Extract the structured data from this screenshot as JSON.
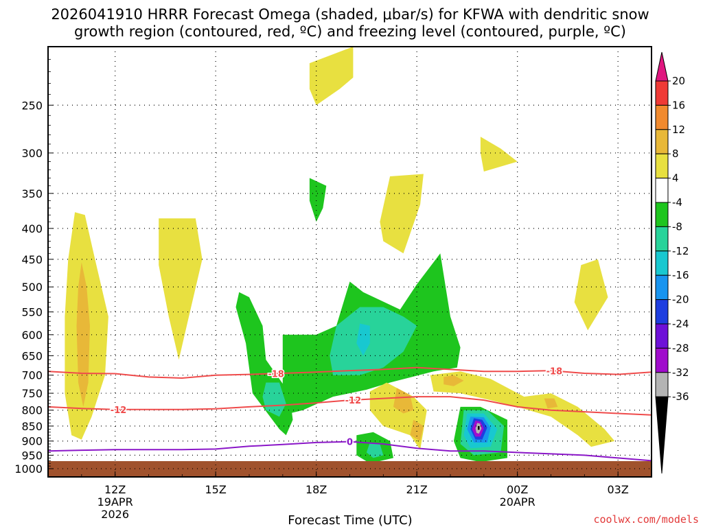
{
  "chart_data": {
    "type": "heatmap",
    "title_line1": "2026041910 HRRR Forecast Omega (shaded, μbar/s) for KFWA with dendritic snow",
    "title_line2": "growth region (contoured, red, ºC) and freezing level (contoured, purple, ºC)",
    "xlabel": "Forecast Time (UTC)",
    "credit": "coolwx.com/models",
    "y_ticks": [
      250,
      300,
      350,
      400,
      450,
      500,
      550,
      600,
      650,
      700,
      750,
      800,
      850,
      900,
      950,
      1000
    ],
    "x_ticks": [
      {
        "hour": 12,
        "label": "12Z",
        "sub1": "19APR",
        "sub2": "2026"
      },
      {
        "hour": 15,
        "label": "15Z",
        "sub1": "",
        "sub2": ""
      },
      {
        "hour": 18,
        "label": "18Z",
        "sub1": "",
        "sub2": ""
      },
      {
        "hour": 21,
        "label": "21Z",
        "sub1": "",
        "sub2": ""
      },
      {
        "hour": 24,
        "label": "00Z",
        "sub1": "20APR",
        "sub2": ""
      },
      {
        "hour": 27,
        "label": "03Z",
        "sub1": "",
        "sub2": ""
      }
    ],
    "x_range_hours": [
      10,
      28
    ],
    "y_range_hPa": [
      200,
      1000
    ],
    "y_scale": "log",
    "grid": true,
    "colorbar": {
      "labels": [
        "20",
        "16",
        "12",
        "8",
        "4",
        "-4",
        "-8",
        "-12",
        "-16",
        "-20",
        "-24",
        "-28",
        "-32",
        "-36"
      ],
      "colors": [
        "#e0167f",
        "#ef3a36",
        "#f18a2e",
        "#e8b838",
        "#e8e040",
        "#ffffff",
        "#1ec51e",
        "#28d39a",
        "#18c8d0",
        "#1894ef",
        "#1e3ee0",
        "#6e10d8",
        "#a00ccc",
        "#b4b4b4",
        "#000000"
      ]
    },
    "contour_labels": {
      "dgz_upper": "-18",
      "dgz_lower": "-12",
      "freezing": "0"
    },
    "contours": {
      "dgz_upper": {
        "hours": [
          10,
          11,
          12,
          13,
          14,
          15,
          16,
          17,
          18,
          19,
          20,
          21,
          22,
          23,
          24,
          25,
          26,
          27,
          28
        ],
        "pres": [
          690,
          695,
          696,
          705,
          708,
          700,
          698,
          695,
          692,
          688,
          685,
          680,
          685,
          690,
          690,
          688,
          695,
          698,
          692
        ]
      },
      "dgz_lower": {
        "hours": [
          10,
          11,
          12,
          13,
          14,
          15,
          16,
          17,
          18,
          19,
          20,
          21,
          22,
          23,
          24,
          25,
          26,
          27,
          28
        ],
        "pres": [
          790,
          795,
          798,
          798,
          798,
          796,
          790,
          785,
          778,
          770,
          765,
          760,
          760,
          770,
          790,
          800,
          805,
          810,
          815
        ]
      },
      "freezing": {
        "hours": [
          10,
          11,
          12,
          13,
          14,
          15,
          16,
          17,
          18,
          19,
          20,
          21,
          22,
          23,
          24,
          25,
          26,
          27,
          28
        ],
        "pres": [
          935,
          932,
          930,
          930,
          930,
          928,
          918,
          912,
          905,
          902,
          910,
          925,
          935,
          935,
          940,
          945,
          950,
          960,
          970
        ]
      }
    },
    "regions": [
      {
        "omega": 4,
        "poly": [
          [
            10.8,
            376
          ],
          [
            11.1,
            380
          ],
          [
            11.4,
            450
          ],
          [
            11.8,
            560
          ],
          [
            11.7,
            700
          ],
          [
            11.3,
            820
          ],
          [
            11.0,
            895
          ],
          [
            10.7,
            880
          ],
          [
            10.5,
            750
          ],
          [
            10.5,
            560
          ],
          [
            10.6,
            450
          ]
        ]
      },
      {
        "omega": 8,
        "poly": [
          [
            11.0,
            455
          ],
          [
            11.15,
            500
          ],
          [
            11.25,
            580
          ],
          [
            11.2,
            720
          ],
          [
            11.05,
            790
          ],
          [
            10.9,
            720
          ],
          [
            10.85,
            580
          ],
          [
            10.9,
            500
          ]
        ]
      },
      {
        "omega": 4,
        "poly": [
          [
            13.3,
            385
          ],
          [
            14.4,
            385
          ],
          [
            14.6,
            450
          ],
          [
            14.2,
            560
          ],
          [
            13.9,
            660
          ],
          [
            13.6,
            560
          ],
          [
            13.3,
            460
          ]
        ]
      },
      {
        "omega": 4,
        "poly": [
          [
            17.8,
            213
          ],
          [
            19.1,
            200
          ],
          [
            19.1,
            225
          ],
          [
            18.7,
            235
          ],
          [
            18.0,
            250
          ],
          [
            17.8,
            235
          ]
        ]
      },
      {
        "omega": 4,
        "poly": [
          [
            20.2,
            328
          ],
          [
            21.2,
            325
          ],
          [
            21.1,
            365
          ],
          [
            20.6,
            440
          ],
          [
            20.0,
            420
          ],
          [
            19.9,
            390
          ]
        ]
      },
      {
        "omega": 4,
        "poly": [
          [
            22.9,
            282
          ],
          [
            23.5,
            295
          ],
          [
            24.0,
            310
          ],
          [
            23.0,
            322
          ],
          [
            22.9,
            300
          ]
        ]
      },
      {
        "omega": 4,
        "poly": [
          [
            25.9,
            460
          ],
          [
            26.4,
            450
          ],
          [
            26.7,
            520
          ],
          [
            26.1,
            590
          ],
          [
            25.7,
            530
          ]
        ]
      },
      {
        "omega": -4,
        "poly": [
          [
            17.8,
            330
          ],
          [
            18.3,
            340
          ],
          [
            18.2,
            370
          ],
          [
            18.0,
            390
          ],
          [
            17.8,
            360
          ]
        ]
      },
      {
        "omega": -4,
        "poly": [
          [
            15.7,
            510
          ],
          [
            16.0,
            520
          ],
          [
            16.4,
            580
          ],
          [
            16.5,
            660
          ],
          [
            17.2,
            750
          ],
          [
            17.3,
            830
          ],
          [
            17.1,
            880
          ],
          [
            16.9,
            860
          ],
          [
            16.1,
            750
          ],
          [
            15.9,
            620
          ],
          [
            15.6,
            540
          ]
        ]
      },
      {
        "omega": -4,
        "poly": [
          [
            17.0,
            600
          ],
          [
            18.0,
            600
          ],
          [
            18.6,
            580
          ],
          [
            19.0,
            490
          ],
          [
            19.4,
            510
          ],
          [
            20.5,
            545
          ],
          [
            21.0,
            495
          ],
          [
            21.7,
            440
          ],
          [
            22.0,
            560
          ],
          [
            22.3,
            630
          ],
          [
            22.2,
            680
          ],
          [
            21.5,
            690
          ],
          [
            20.2,
            720
          ],
          [
            19.5,
            740
          ],
          [
            18.5,
            760
          ],
          [
            17.6,
            800
          ],
          [
            17.2,
            810
          ],
          [
            17.0,
            780
          ]
        ]
      },
      {
        "omega": -8,
        "poly": [
          [
            18.6,
            580
          ],
          [
            19.3,
            540
          ],
          [
            20.0,
            540
          ],
          [
            20.6,
            560
          ],
          [
            21.0,
            580
          ],
          [
            20.6,
            640
          ],
          [
            20.0,
            680
          ],
          [
            19.3,
            700
          ],
          [
            18.5,
            700
          ],
          [
            18.4,
            650
          ]
        ]
      },
      {
        "omega": -12,
        "poly": [
          [
            19.3,
            575
          ],
          [
            19.6,
            580
          ],
          [
            19.6,
            620
          ],
          [
            19.4,
            650
          ],
          [
            19.2,
            620
          ]
        ]
      },
      {
        "omega": -8,
        "poly": [
          [
            16.5,
            720
          ],
          [
            16.9,
            720
          ],
          [
            17.1,
            780
          ],
          [
            16.9,
            820
          ],
          [
            16.5,
            800
          ],
          [
            16.4,
            760
          ]
        ]
      },
      {
        "omega": 4,
        "poly": [
          [
            19.6,
            745
          ],
          [
            20.1,
            720
          ],
          [
            20.9,
            760
          ],
          [
            21.3,
            800
          ],
          [
            21.1,
            930
          ],
          [
            20.8,
            880
          ],
          [
            20.0,
            850
          ],
          [
            19.6,
            800
          ]
        ]
      },
      {
        "omega": 8,
        "poly": [
          [
            20.4,
            735
          ],
          [
            20.8,
            755
          ],
          [
            20.9,
            800
          ],
          [
            20.6,
            810
          ],
          [
            20.3,
            790
          ]
        ]
      },
      {
        "omega": 8,
        "poly": [
          [
            20.9,
            830
          ],
          [
            21.2,
            850
          ],
          [
            21.1,
            900
          ],
          [
            20.8,
            880
          ]
        ]
      },
      {
        "omega": 4,
        "poly": [
          [
            21.4,
            700
          ],
          [
            22.3,
            690
          ],
          [
            23.2,
            710
          ],
          [
            24.2,
            760
          ],
          [
            25.0,
            750
          ],
          [
            25.8,
            790
          ],
          [
            26.6,
            860
          ],
          [
            26.9,
            900
          ],
          [
            26.2,
            920
          ],
          [
            25.8,
            880
          ],
          [
            25.0,
            820
          ],
          [
            24.0,
            790
          ],
          [
            23.2,
            770
          ],
          [
            22.3,
            750
          ],
          [
            21.5,
            745
          ]
        ]
      },
      {
        "omega": 8,
        "poly": [
          [
            21.8,
            705
          ],
          [
            22.1,
            700
          ],
          [
            22.4,
            715
          ],
          [
            22.1,
            730
          ],
          [
            21.8,
            725
          ]
        ]
      },
      {
        "omega": 8,
        "poly": [
          [
            24.8,
            765
          ],
          [
            25.1,
            765
          ],
          [
            25.2,
            790
          ],
          [
            24.9,
            795
          ]
        ]
      },
      {
        "omega": -4,
        "poly": [
          [
            19.2,
            880
          ],
          [
            19.7,
            870
          ],
          [
            20.2,
            900
          ],
          [
            20.3,
            960
          ],
          [
            19.6,
            980
          ],
          [
            19.2,
            950
          ]
        ]
      },
      {
        "omega": -8,
        "poly": [
          [
            19.6,
            905
          ],
          [
            19.9,
            910
          ],
          [
            20.0,
            950
          ],
          [
            19.7,
            960
          ],
          [
            19.5,
            940
          ]
        ]
      },
      {
        "omega": -4,
        "poly": [
          [
            22.3,
            790
          ],
          [
            22.9,
            790
          ],
          [
            23.7,
            830
          ],
          [
            23.7,
            960
          ],
          [
            22.9,
            975
          ],
          [
            22.3,
            960
          ],
          [
            22.1,
            900
          ]
        ]
      },
      {
        "omega": -8,
        "poly": [
          [
            22.4,
            800
          ],
          [
            23.1,
            800
          ],
          [
            23.6,
            850
          ],
          [
            23.5,
            940
          ],
          [
            22.7,
            950
          ],
          [
            22.3,
            910
          ]
        ]
      },
      {
        "omega": -12,
        "poly": [
          [
            22.5,
            810
          ],
          [
            23.0,
            810
          ],
          [
            23.4,
            860
          ],
          [
            23.2,
            920
          ],
          [
            22.6,
            925
          ],
          [
            22.4,
            880
          ]
        ]
      },
      {
        "omega": -16,
        "poly": [
          [
            22.6,
            820
          ],
          [
            23.0,
            822
          ],
          [
            23.2,
            855
          ],
          [
            23.1,
            905
          ],
          [
            22.7,
            905
          ],
          [
            22.5,
            860
          ]
        ]
      },
      {
        "omega": -20,
        "poly": [
          [
            22.7,
            825
          ],
          [
            22.95,
            830
          ],
          [
            23.1,
            855
          ],
          [
            22.95,
            895
          ],
          [
            22.75,
            895
          ],
          [
            22.6,
            860
          ]
        ]
      },
      {
        "omega": -28,
        "poly": [
          [
            22.75,
            832
          ],
          [
            22.9,
            836
          ],
          [
            23.0,
            858
          ],
          [
            22.9,
            885
          ],
          [
            22.75,
            885
          ],
          [
            22.65,
            860
          ]
        ]
      },
      {
        "omega": -32,
        "poly": [
          [
            22.8,
            840
          ],
          [
            22.88,
            842
          ],
          [
            22.93,
            858
          ],
          [
            22.85,
            875
          ],
          [
            22.78,
            872
          ],
          [
            22.75,
            858
          ]
        ]
      },
      {
        "omega": -36,
        "poly": [
          [
            22.82,
            850
          ],
          [
            22.87,
            850
          ],
          [
            22.87,
            862
          ],
          [
            22.82,
            862
          ]
        ]
      }
    ]
  }
}
